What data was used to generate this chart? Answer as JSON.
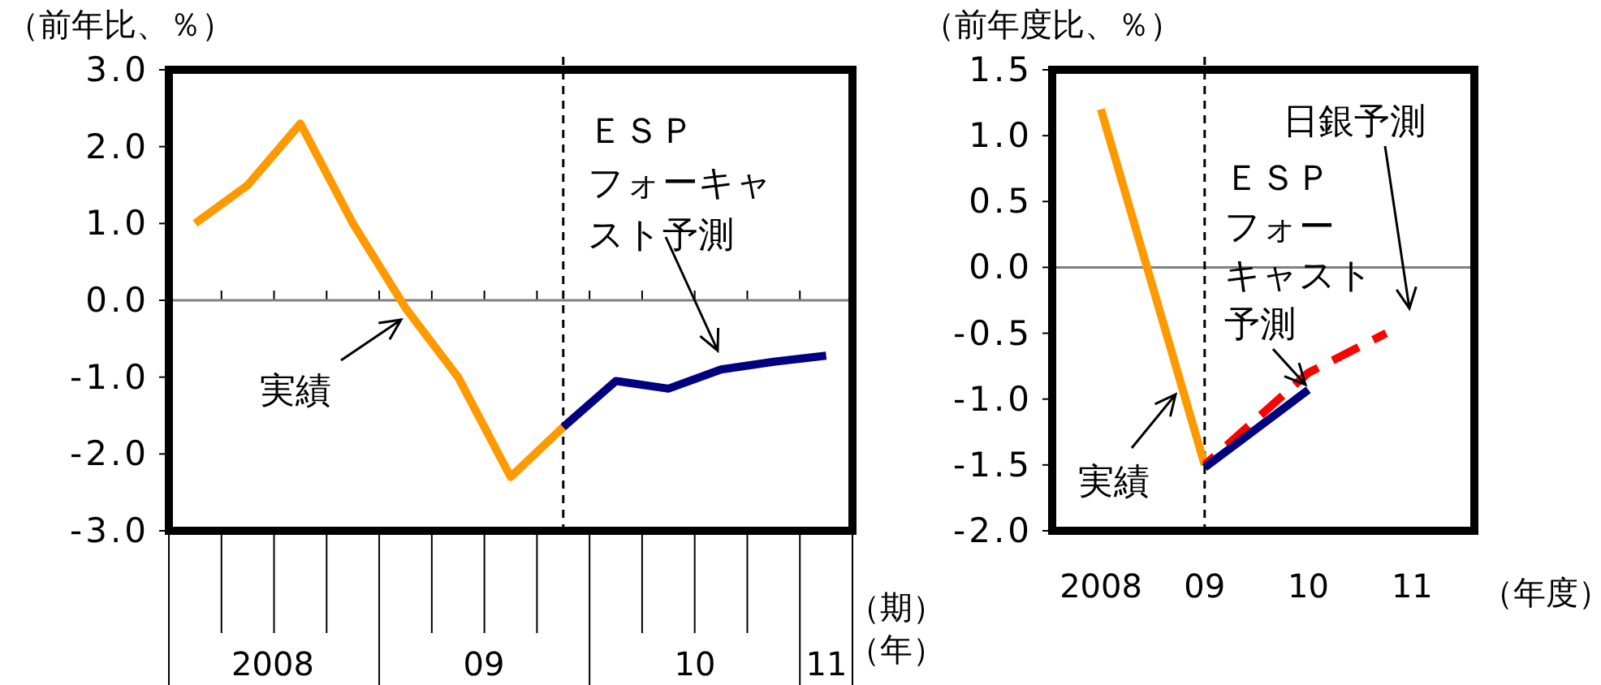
{
  "chart_data": [
    {
      "type": "line",
      "ylabel": "（前年比、％）",
      "xlabel": "（期）（年）",
      "categories": [
        null,
        null,
        null,
        null,
        null,
        null,
        null,
        null,
        null,
        null,
        null,
        null,
        null
      ],
      "ylim": [
        -3,
        3
      ],
      "yticks": [
        {
          "value": 3,
          "label": "3.0"
        },
        {
          "value": 2,
          "label": "2.0"
        },
        {
          "value": 1,
          "label": "1.0"
        },
        {
          "value": 0,
          "label": "0.0"
        },
        {
          "value": -1,
          "label": "-1.0"
        },
        {
          "value": -2,
          "label": "-2.0"
        },
        {
          "value": -3,
          "label": "-3.0"
        }
      ],
      "series": [
        {
          "color": "#ff9900",
          "values": [
            1.0,
            1.5,
            2.3,
            1.0,
            -0.1,
            -1.0,
            -2.3,
            -1.65,
            null,
            null,
            null,
            null,
            null
          ]
        },
        {
          "color": "#000080",
          "values": [
            null,
            null,
            null,
            null,
            null,
            null,
            null,
            -1.65,
            -1.05,
            -1.15,
            -0.9,
            -0.8,
            -0.72
          ]
        }
      ],
      "ref_lines": [
        {
          "axis": "y",
          "value": 0,
          "color": "#808080"
        }
      ],
      "annotations": [
        "実績",
        "ＥＳＰフォーキャスト予測",
        "2008",
        "09",
        "10",
        "11"
      ]
    },
    {
      "type": "line",
      "ylabel": "（前年度比、％）",
      "xlabel": "（年度）",
      "xlim": [
        2007.53,
        2011.6
      ],
      "xticks": [
        {
          "value": 2008,
          "label": "2008"
        },
        {
          "value": 2009,
          "label": "09"
        },
        {
          "value": 2010,
          "label": "10"
        },
        {
          "value": 2011,
          "label": "11"
        }
      ],
      "ylim": [
        -2,
        1.5
      ],
      "yticks": [
        {
          "value": 1.5,
          "label": "1.5"
        },
        {
          "value": 1,
          "label": "1.0"
        },
        {
          "value": 0.5,
          "label": "0.5"
        },
        {
          "value": 0,
          "label": "0.0"
        },
        {
          "value": -0.5,
          "label": "-0.5"
        },
        {
          "value": -1,
          "label": "-1.0"
        },
        {
          "value": -1.5,
          "label": "-1.5"
        },
        {
          "value": -2,
          "label": "-2.0"
        }
      ],
      "series": [
        {
          "color": "#ff9900",
          "x": [
            2008,
            2009
          ],
          "values": [
            1.2,
            -1.5
          ]
        },
        {
          "color": "#ff0000",
          "x": [
            2009,
            2010,
            2010.75
          ],
          "values": [
            -1.5,
            -0.8,
            -0.5
          ],
          "line_style": "dashed"
        },
        {
          "color": "#000080",
          "x": [
            2009,
            2010
          ],
          "values": [
            -1.52,
            -0.93
          ]
        }
      ],
      "ref_lines": [
        {
          "axis": "y",
          "value": 0,
          "color": "#808080"
        },
        {
          "axis": "x",
          "value": 2009,
          "color": "#000000",
          "line_style": "dashed"
        }
      ],
      "annotations": [
        "実績",
        "ＥＳＰフォーキャスト予測",
        "日銀予測"
      ]
    }
  ]
}
